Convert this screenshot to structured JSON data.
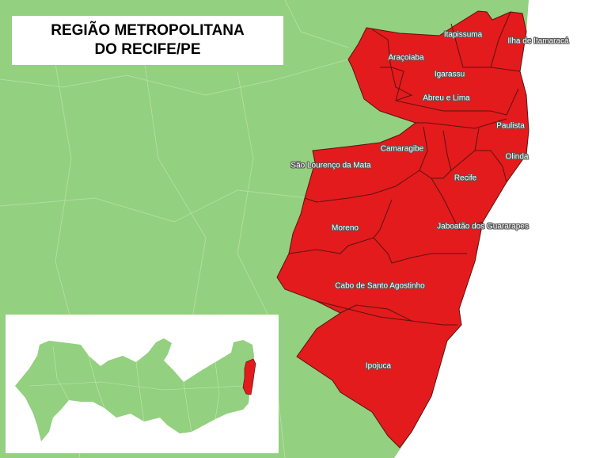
{
  "title": {
    "line1": "REGIÃO METROPOLITANA",
    "line2": "DO RECIFE/PE"
  },
  "colors": {
    "highlight": "#e31b1c",
    "land": "#93d07f",
    "ocean": "#ffffff",
    "border": "#5a1212"
  },
  "municipalities": [
    {
      "name": "Itapissuma"
    },
    {
      "name": "Ilha de Itamaracá"
    },
    {
      "name": "Araçoiaba"
    },
    {
      "name": "Igarassu"
    },
    {
      "name": "Abreu e Lima"
    },
    {
      "name": "Paulista"
    },
    {
      "name": "Camaragibe"
    },
    {
      "name": "Olinda"
    },
    {
      "name": "São Lourenço da Mata"
    },
    {
      "name": "Recife"
    },
    {
      "name": "Moreno"
    },
    {
      "name": "Jaboatão dos Guararapes"
    },
    {
      "name": "Cabo de Santo Agostinho"
    },
    {
      "name": "Ipojuca"
    }
  ],
  "inset": {
    "region": "Pernambuco",
    "highlighted": "Região Metropolitana do Recife"
  }
}
